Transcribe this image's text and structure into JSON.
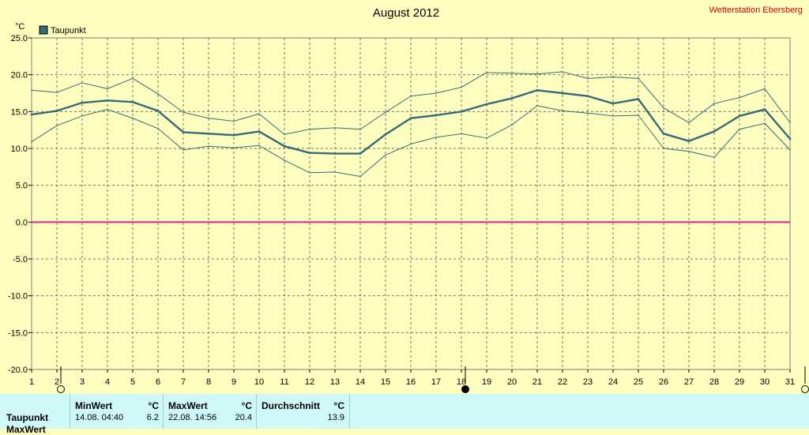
{
  "header": {
    "title": "August 2012",
    "station": "Wetterstation Ebersberg"
  },
  "chart_data": {
    "type": "line",
    "title": "August 2012",
    "ylabel": "°C",
    "ylim": [
      -20,
      25
    ],
    "yticks": [
      "25.0",
      "20.0",
      "15.0",
      "10.0",
      "5.0",
      "0.0",
      "-5.0",
      "-10.0",
      "-15.0",
      "-20.0"
    ],
    "x": [
      1,
      2,
      3,
      4,
      5,
      6,
      7,
      8,
      9,
      10,
      11,
      12,
      13,
      14,
      15,
      16,
      17,
      18,
      19,
      20,
      21,
      22,
      23,
      24,
      25,
      26,
      27,
      28,
      29,
      30,
      31
    ],
    "grid": true,
    "legend": "top-left",
    "series": [
      {
        "name": "Taupunkt",
        "role": "mean",
        "color": "#336b7a",
        "values": [
          14.6,
          15.1,
          16.2,
          16.5,
          16.3,
          15.1,
          12.2,
          12.0,
          11.8,
          12.3,
          10.3,
          9.4,
          9.3,
          9.3,
          11.9,
          14.1,
          14.5,
          15.0,
          16.0,
          16.8,
          17.9,
          17.5,
          17.1,
          16.1,
          16.7,
          12.0,
          11.0,
          12.3,
          14.4,
          15.3,
          11.3
        ]
      },
      {
        "role": "max",
        "color": "#336b7a",
        "values": [
          17.9,
          17.6,
          18.9,
          18.1,
          19.5,
          17.4,
          14.9,
          14.1,
          13.7,
          14.7,
          11.9,
          12.6,
          12.8,
          12.6,
          14.9,
          17.1,
          17.5,
          18.3,
          20.3,
          20.2,
          20.1,
          20.4,
          19.5,
          19.7,
          19.5,
          15.5,
          13.5,
          16.1,
          16.9,
          18.1,
          13.5
        ]
      },
      {
        "role": "min",
        "color": "#336b7a",
        "values": [
          10.9,
          13.1,
          14.4,
          15.3,
          14.1,
          12.7,
          9.8,
          10.3,
          10.1,
          10.4,
          8.4,
          6.7,
          6.8,
          6.2,
          9.1,
          10.6,
          11.5,
          12.0,
          11.4,
          13.2,
          15.8,
          15.1,
          14.8,
          14.4,
          14.5,
          10.0,
          9.6,
          8.8,
          12.6,
          13.4,
          9.8
        ]
      }
    ],
    "zero_line_color": "#e0208a"
  },
  "markers": {
    "start_day": 2,
    "current_day": 18,
    "end_day": 31
  },
  "stats": {
    "row_label": "Taupunkt",
    "row_label_2": "MaxWert",
    "min": {
      "header": "MinWert",
      "unit": "°C",
      "date": "14.08.  04:40",
      "value": "6.2"
    },
    "max": {
      "header": "MaxWert",
      "unit": "°C",
      "date": "22.08.  14:56",
      "value": "20.4"
    },
    "avg": {
      "header": "Durchschnitt",
      "unit": "°C",
      "value": "13.9"
    }
  }
}
